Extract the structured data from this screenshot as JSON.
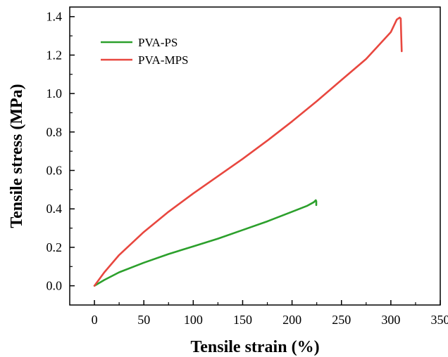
{
  "chart_data": {
    "type": "line",
    "title": "",
    "xlabel": "Tensile strain (%)",
    "ylabel": "Tensile stress (MPa)",
    "xlim": [
      -25,
      350
    ],
    "ylim": [
      -0.1,
      1.45
    ],
    "grid": false,
    "legend_position": "top-left",
    "x_ticks": [
      0,
      50,
      100,
      150,
      200,
      250,
      300,
      350
    ],
    "x_tick_labels": [
      "0",
      "50",
      "100",
      "150",
      "200",
      "250",
      "300",
      "350"
    ],
    "y_ticks": [
      0.0,
      0.2,
      0.4,
      0.6,
      0.8,
      1.0,
      1.2,
      1.4
    ],
    "y_tick_labels": [
      "0.0",
      "0.2",
      "0.4",
      "0.6",
      "0.8",
      "1.0",
      "1.2",
      "1.4"
    ],
    "series": [
      {
        "name": "PVA-PS",
        "color": "#2ca02c",
        "x": [
          0,
          10,
          25,
          50,
          75,
          100,
          125,
          150,
          175,
          200,
          215,
          222,
          224,
          224.5,
          224.5
        ],
        "y": [
          0,
          0.03,
          0.07,
          0.12,
          0.165,
          0.205,
          0.245,
          0.29,
          0.335,
          0.385,
          0.415,
          0.435,
          0.445,
          0.44,
          0.42
        ]
      },
      {
        "name": "PVA-MPS",
        "color": "#e8473f",
        "x": [
          0,
          10,
          25,
          50,
          75,
          100,
          125,
          150,
          175,
          200,
          225,
          250,
          275,
          300,
          306,
          309,
          310,
          310.5,
          311
        ],
        "y": [
          0,
          0.07,
          0.16,
          0.28,
          0.385,
          0.48,
          0.57,
          0.66,
          0.755,
          0.855,
          0.96,
          1.07,
          1.18,
          1.32,
          1.385,
          1.395,
          1.39,
          1.3,
          1.22
        ]
      }
    ]
  }
}
